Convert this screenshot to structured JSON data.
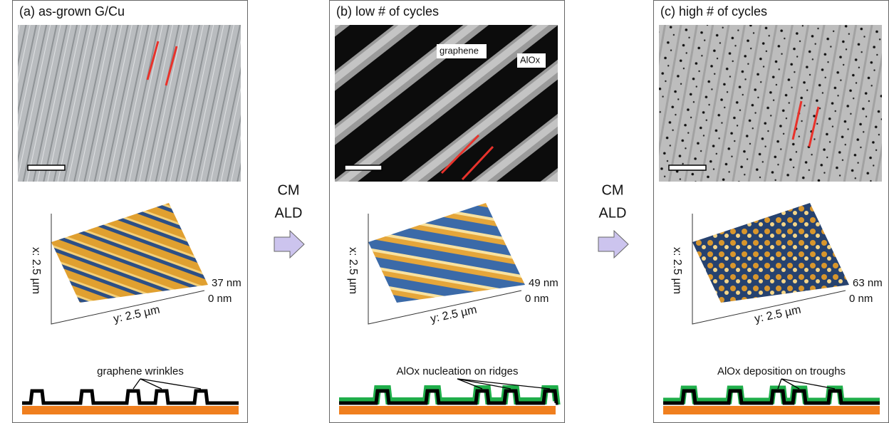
{
  "panels": [
    {
      "title": "(a) as-grown G/Cu",
      "x_label": "x: 2.5 µm",
      "y_label": "y: 2.5 µm",
      "z_max": "37 nm",
      "z_min": "0 nm",
      "schematic_label": "graphene wrinkles"
    },
    {
      "title": "(b) low # of cycles",
      "x_label": "x: 2.5 µm",
      "y_label": "y: 2.5 µm",
      "z_max": "49 nm",
      "z_min": "0 nm",
      "schematic_label": "AlOx nucleation on ridges",
      "image_labels": [
        "graphene",
        "AlOx"
      ]
    },
    {
      "title": "(c) high # of cycles",
      "x_label": "x: 2.5 µm",
      "y_label": "y: 2.5 µm",
      "z_max": "63 nm",
      "z_min": "0 nm",
      "schematic_label": "AlOx deposition on troughs"
    }
  ],
  "arrows": [
    {
      "line1": "CM",
      "line2": "ALD"
    },
    {
      "line1": "CM",
      "line2": "ALD"
    }
  ]
}
